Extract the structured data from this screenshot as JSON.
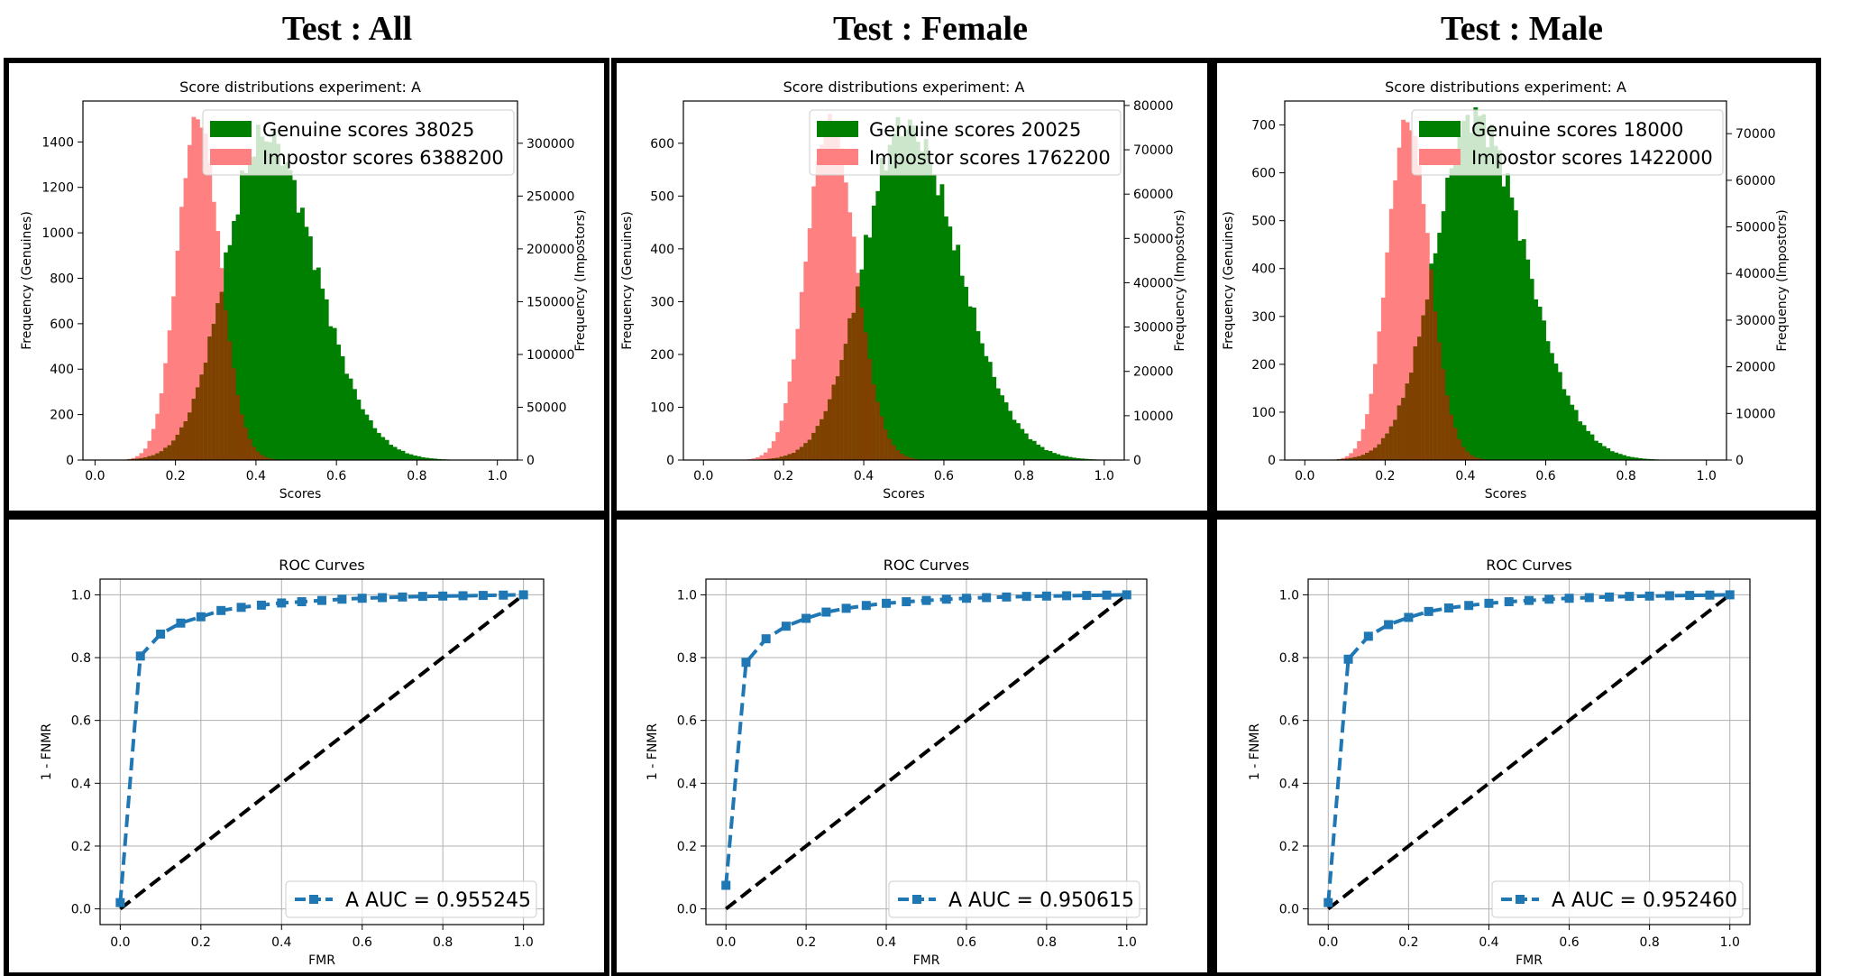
{
  "columns": [
    {
      "title": "Test : All"
    },
    {
      "title": "Test : Female"
    },
    {
      "title": "Test : Male"
    }
  ],
  "chart_data": [
    {
      "type": "histogram",
      "title": "Score distributions experiment: A",
      "xlabel": "Scores",
      "ylabel": "Frequency (Genuines)",
      "y2label": "Frequency (Impostors)",
      "xlim": [
        -0.03,
        1.05
      ],
      "xticks": [
        0.0,
        0.2,
        0.4,
        0.6,
        0.8,
        1.0
      ],
      "ylim": [
        0,
        1580
      ],
      "yticks": [
        0,
        200,
        400,
        600,
        800,
        1000,
        1200,
        1400
      ],
      "y2lim": [
        0,
        340000
      ],
      "y2ticks": [
        0,
        50000,
        100000,
        150000,
        200000,
        250000,
        300000
      ],
      "legend_position": "upper-right",
      "series": [
        {
          "name": "Genuine scores 38025",
          "color": "#008000",
          "axis": "left",
          "mean": 0.42,
          "sd": 0.095,
          "skew": 1.35,
          "peak": 1430
        },
        {
          "name": "Impostor scores 6388200",
          "color": "#ff8080",
          "axis": "right",
          "mean": 0.255,
          "sd": 0.05,
          "skew": 1.1,
          "peak": 325000
        }
      ]
    },
    {
      "type": "histogram",
      "title": "Score distributions experiment: A",
      "xlabel": "Scores",
      "ylabel": "Frequency (Genuines)",
      "y2label": "Frequency (Impostors)",
      "xlim": [
        -0.05,
        1.05
      ],
      "xticks": [
        0.0,
        0.2,
        0.4,
        0.6,
        0.8,
        1.0
      ],
      "ylim": [
        0,
        680
      ],
      "yticks": [
        0,
        100,
        200,
        300,
        400,
        500,
        600
      ],
      "y2lim": [
        0,
        81000
      ],
      "y2ticks": [
        0,
        10000,
        20000,
        30000,
        40000,
        50000,
        60000,
        70000,
        80000
      ],
      "legend_position": "upper-right",
      "series": [
        {
          "name": "Genuine scores 20025",
          "color": "#008000",
          "axis": "left",
          "mean": 0.5,
          "sd": 0.1,
          "skew": 1.35,
          "peak": 635
        },
        {
          "name": "Impostor scores 1762200",
          "color": "#ff8080",
          "axis": "right",
          "mean": 0.315,
          "sd": 0.058,
          "skew": 1.1,
          "peak": 77000
        }
      ]
    },
    {
      "type": "histogram",
      "title": "Score distributions experiment: A",
      "xlabel": "Scores",
      "ylabel": "Frequency (Genuines)",
      "y2label": "Frequency (Impostors)",
      "xlim": [
        -0.05,
        1.05
      ],
      "xticks": [
        0.0,
        0.2,
        0.4,
        0.6,
        0.8,
        1.0
      ],
      "ylim": [
        0,
        750
      ],
      "yticks": [
        0,
        100,
        200,
        300,
        400,
        500,
        600,
        700
      ],
      "y2lim": [
        0,
        77000
      ],
      "y2ticks": [
        0,
        10000,
        20000,
        30000,
        40000,
        50000,
        60000,
        70000
      ],
      "legend_position": "upper-right",
      "series": [
        {
          "name": "Genuine scores 18000",
          "color": "#008000",
          "axis": "left",
          "mean": 0.42,
          "sd": 0.095,
          "skew": 1.35,
          "peak": 720
        },
        {
          "name": "Impostor scores 1422000",
          "color": "#ff8080",
          "axis": "right",
          "mean": 0.255,
          "sd": 0.05,
          "skew": 1.1,
          "peak": 73000
        }
      ]
    },
    {
      "type": "line",
      "title": "ROC Curves",
      "xlabel": "FMR",
      "ylabel": "1 - FNMR",
      "xlim": [
        -0.05,
        1.05
      ],
      "ylim": [
        -0.05,
        1.05
      ],
      "xticks": [
        0.0,
        0.2,
        0.4,
        0.6,
        0.8,
        1.0
      ],
      "yticks": [
        0.0,
        0.2,
        0.4,
        0.6,
        0.8,
        1.0
      ],
      "grid": true,
      "legend_position": "lower-right",
      "series": [
        {
          "name": "A AUC = 0.955245",
          "color": "#1f77b4",
          "x": [
            0.0,
            0.05,
            0.1,
            0.15,
            0.2,
            0.25,
            0.3,
            0.35,
            0.4,
            0.45,
            0.5,
            0.55,
            0.6,
            0.65,
            0.7,
            0.75,
            0.8,
            0.85,
            0.9,
            0.95,
            1.0
          ],
          "y": [
            0.02,
            0.805,
            0.875,
            0.91,
            0.93,
            0.95,
            0.96,
            0.967,
            0.974,
            0.978,
            0.982,
            0.986,
            0.989,
            0.991,
            0.993,
            0.995,
            0.996,
            0.997,
            0.998,
            0.999,
            1.0
          ]
        },
        {
          "name": "chance",
          "color": "#000000",
          "x": [
            0.0,
            1.0
          ],
          "y": [
            0.0,
            1.0
          ]
        }
      ]
    },
    {
      "type": "line",
      "title": "ROC Curves",
      "xlabel": "FMR",
      "ylabel": "1 - FNMR",
      "xlim": [
        -0.05,
        1.05
      ],
      "ylim": [
        -0.05,
        1.05
      ],
      "xticks": [
        0.0,
        0.2,
        0.4,
        0.6,
        0.8,
        1.0
      ],
      "yticks": [
        0.0,
        0.2,
        0.4,
        0.6,
        0.8,
        1.0
      ],
      "grid": true,
      "legend_position": "lower-right",
      "series": [
        {
          "name": "A AUC = 0.950615",
          "color": "#1f77b4",
          "x": [
            0.0,
            0.05,
            0.1,
            0.15,
            0.2,
            0.25,
            0.3,
            0.35,
            0.4,
            0.45,
            0.5,
            0.55,
            0.6,
            0.65,
            0.7,
            0.75,
            0.8,
            0.85,
            0.9,
            0.95,
            1.0
          ],
          "y": [
            0.075,
            0.785,
            0.86,
            0.9,
            0.925,
            0.945,
            0.957,
            0.966,
            0.973,
            0.978,
            0.982,
            0.986,
            0.989,
            0.991,
            0.993,
            0.995,
            0.996,
            0.997,
            0.998,
            0.999,
            1.0
          ]
        },
        {
          "name": "chance",
          "color": "#000000",
          "x": [
            0.0,
            1.0
          ],
          "y": [
            0.0,
            1.0
          ]
        }
      ]
    },
    {
      "type": "line",
      "title": "ROC Curves",
      "xlabel": "FMR",
      "ylabel": "1 - FNMR",
      "xlim": [
        -0.05,
        1.05
      ],
      "ylim": [
        -0.05,
        1.05
      ],
      "xticks": [
        0.0,
        0.2,
        0.4,
        0.6,
        0.8,
        1.0
      ],
      "yticks": [
        0.0,
        0.2,
        0.4,
        0.6,
        0.8,
        1.0
      ],
      "grid": true,
      "legend_position": "lower-right",
      "series": [
        {
          "name": "A AUC = 0.952460",
          "color": "#1f77b4",
          "x": [
            0.0,
            0.05,
            0.1,
            0.15,
            0.2,
            0.25,
            0.3,
            0.35,
            0.4,
            0.45,
            0.5,
            0.55,
            0.6,
            0.65,
            0.7,
            0.75,
            0.8,
            0.85,
            0.9,
            0.95,
            1.0
          ],
          "y": [
            0.02,
            0.795,
            0.868,
            0.905,
            0.928,
            0.947,
            0.958,
            0.966,
            0.973,
            0.978,
            0.982,
            0.986,
            0.989,
            0.991,
            0.993,
            0.995,
            0.996,
            0.997,
            0.998,
            0.999,
            1.0
          ]
        },
        {
          "name": "chance",
          "color": "#000000",
          "x": [
            0.0,
            1.0
          ],
          "y": [
            0.0,
            1.0
          ]
        }
      ]
    }
  ]
}
